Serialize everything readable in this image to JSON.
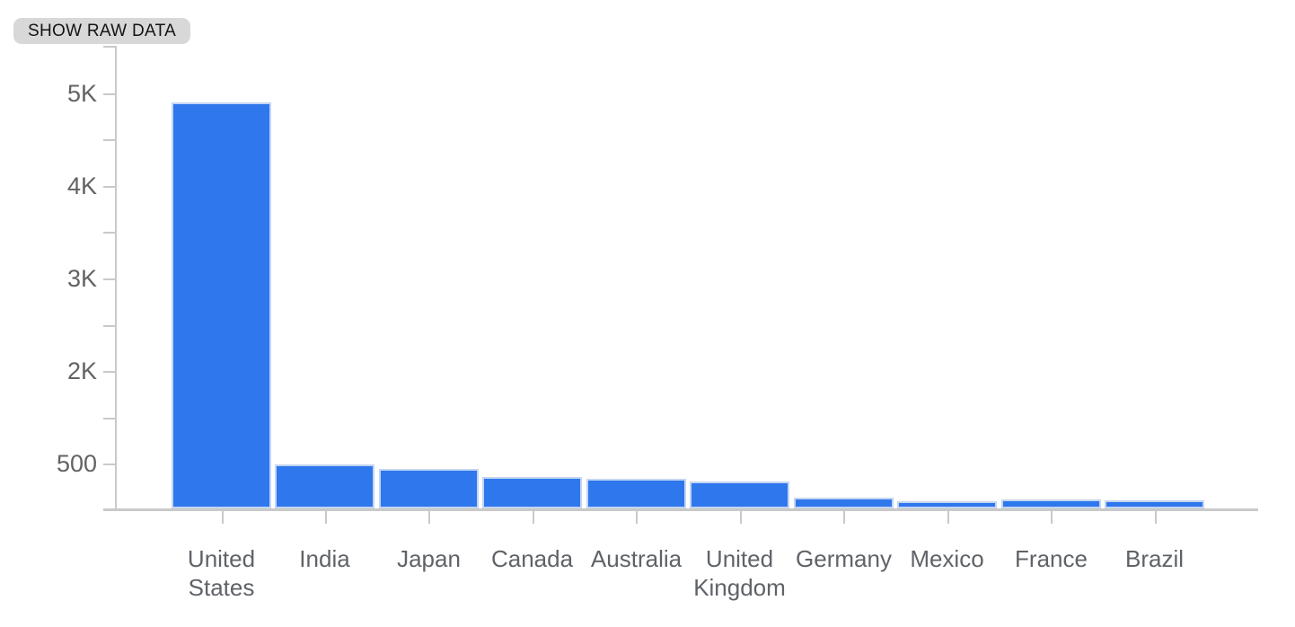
{
  "toolbar": {
    "show_raw_data_label": "SHOW RAW DATA"
  },
  "chart_data": {
    "type": "bar",
    "title": "",
    "xlabel": "",
    "ylabel": "",
    "categories": [
      "United States",
      "India",
      "Japan",
      "Canada",
      "Australia",
      "United Kingdom",
      "Germany",
      "Mexico",
      "France",
      "Brazil"
    ],
    "values": [
      4880,
      470,
      430,
      340,
      320,
      290,
      120,
      80,
      95,
      85
    ],
    "y_tick_labels": [
      "5K",
      "4K",
      "3K",
      "2K",
      "500"
    ],
    "ylim": [
      0,
      5500
    ],
    "grid": false,
    "legend_position": "none",
    "bar_color": "#2e77ec",
    "bar_stroke_color": "#c3d5f1",
    "axis_color": "#c9c9c9",
    "label_color": "#5f6368"
  }
}
